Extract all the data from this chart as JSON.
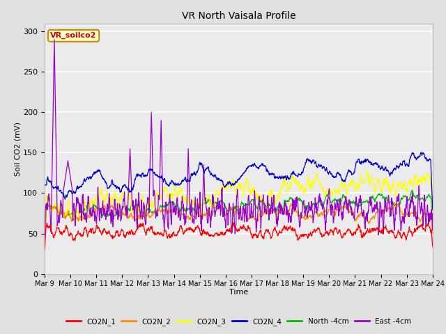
{
  "title": "VR North Vaisala Profile",
  "xlabel": "Time",
  "ylabel": "Soil CO2 (mV)",
  "annotation": "VR_soilco2",
  "ylim": [
    0,
    310
  ],
  "yticks": [
    0,
    50,
    100,
    150,
    200,
    250,
    300
  ],
  "xtick_labels": [
    "Mar 9",
    "Mar 10",
    "Mar 11",
    "Mar 12",
    "Mar 13",
    "Mar 14",
    "Mar 15",
    "Mar 16",
    "Mar 17",
    "Mar 18",
    "Mar 19",
    "Mar 20",
    "Mar 21",
    "Mar 22",
    "Mar 23",
    "Mar 24"
  ],
  "series_colors": {
    "CO2N_1": "#ff0000",
    "CO2N_2": "#ff8800",
    "CO2N_3": "#ffff00",
    "CO2N_4": "#0000cc",
    "North -4cm": "#00bb00",
    "East -4cm": "#9900cc"
  },
  "background_color": "#e0e0e0",
  "plot_bg": "#ebebeb",
  "grid_color": "#ffffff",
  "annotation_bg": "#ffffcc",
  "annotation_border": "#cc8800",
  "annotation_text_color": "#cc0000"
}
